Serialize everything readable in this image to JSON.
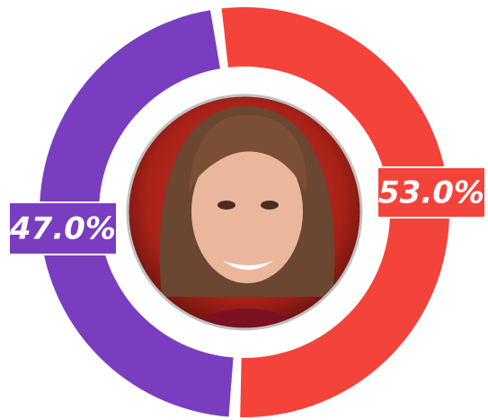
{
  "chart_data": {
    "type": "donut",
    "values": [
      47,
      53
    ],
    "value_labels": [
      "47.0%",
      "53.0%"
    ],
    "colors": [
      "#7a3dbf",
      "#f3433a"
    ]
  }
}
